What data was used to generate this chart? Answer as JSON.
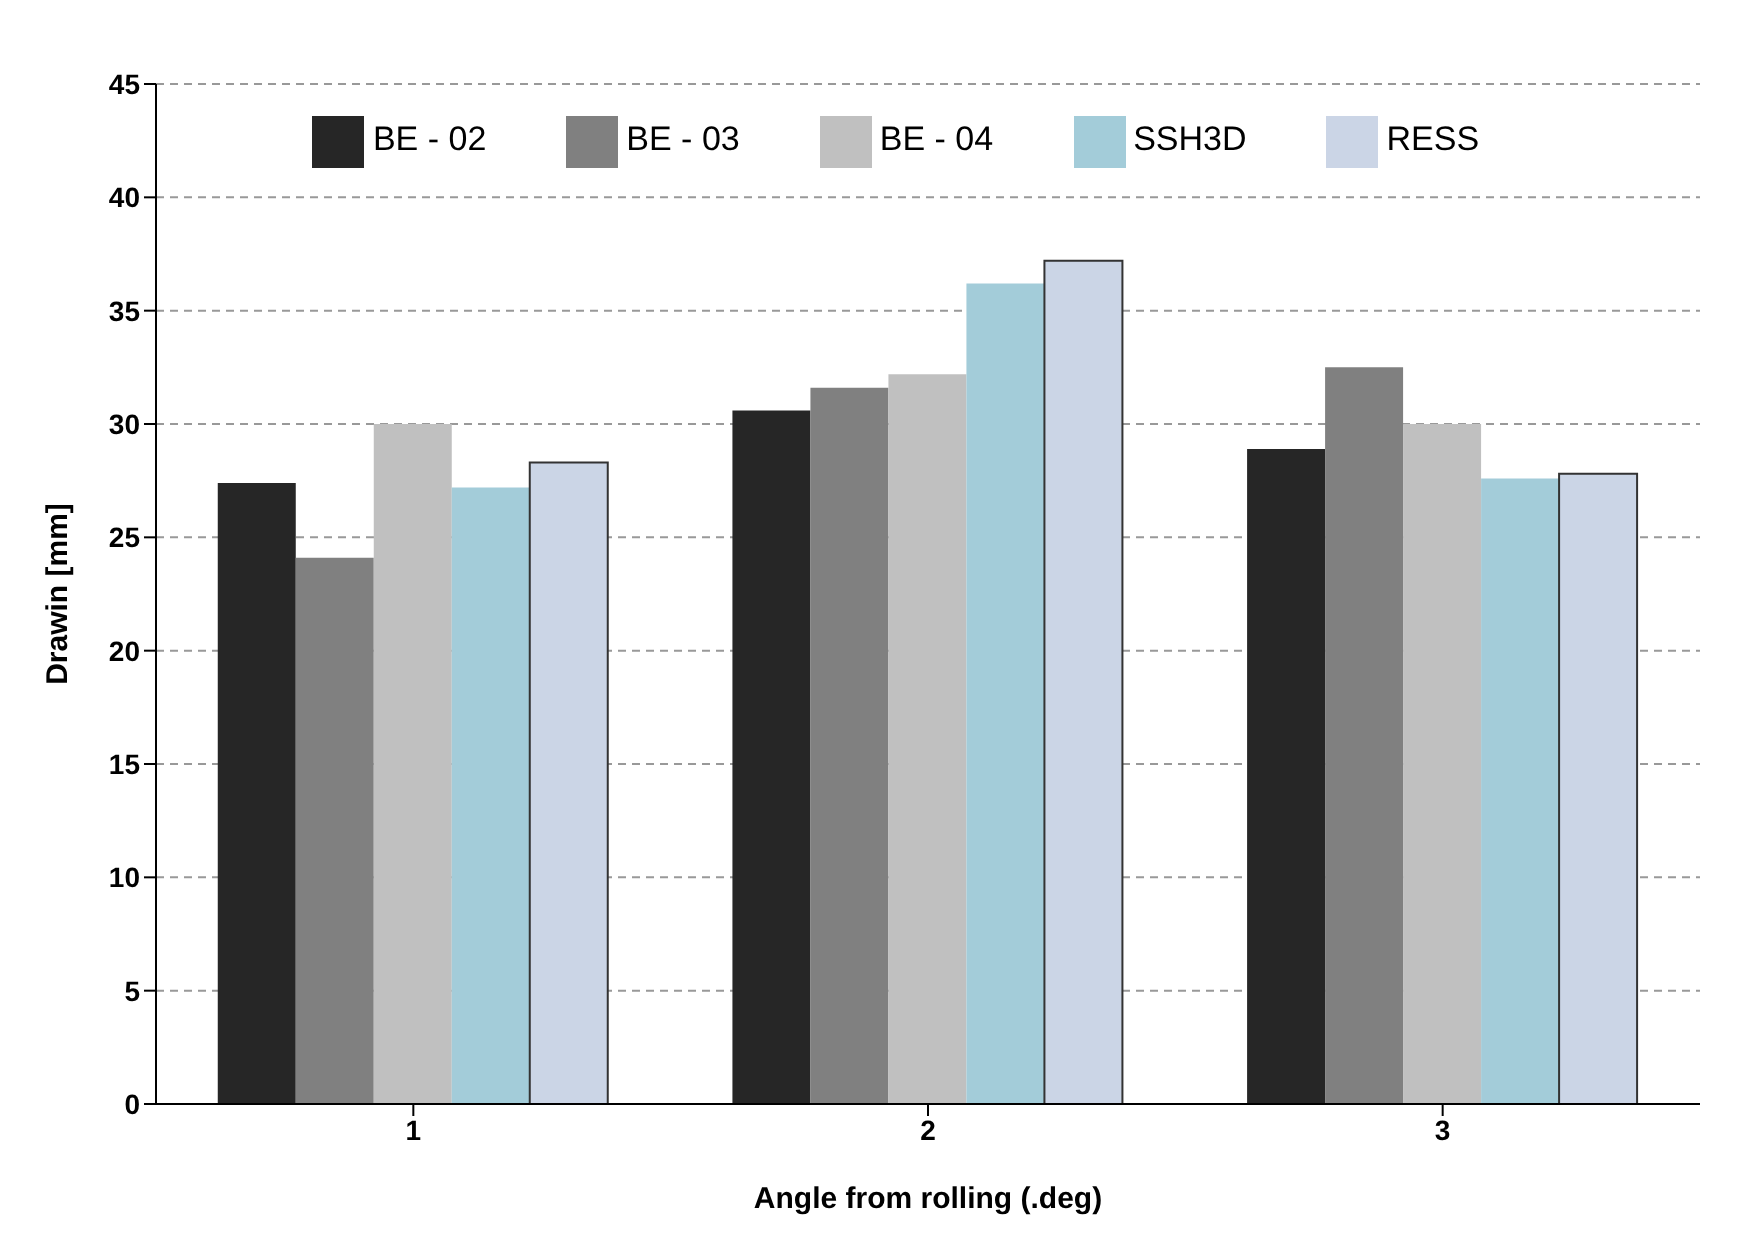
{
  "chart_data": {
    "type": "bar",
    "xlabel": "Angle from rolling (.deg)",
    "ylabel": "Drawin [mm]",
    "categories": [
      "1",
      "2",
      "3"
    ],
    "series": [
      {
        "name": "BE - 02",
        "color": "#262626",
        "values": [
          27.4,
          30.6,
          28.9
        ]
      },
      {
        "name": "BE - 03",
        "color": "#808080",
        "values": [
          24.1,
          31.6,
          32.5
        ]
      },
      {
        "name": "BE - 04",
        "color": "#c0c0c0",
        "values": [
          30.0,
          32.2,
          30.0
        ]
      },
      {
        "name": "SSH3D",
        "color": "#a3ccd9",
        "values": [
          27.2,
          36.2,
          27.6
        ]
      },
      {
        "name": "RESS",
        "color": "#cbd5e6",
        "values": [
          28.3,
          37.2,
          27.8
        ]
      }
    ],
    "ylim": [
      0,
      45
    ],
    "yticks": [
      0,
      5,
      10,
      15,
      20,
      25,
      30,
      35,
      40,
      45
    ],
    "grid": "y",
    "legend": "top"
  }
}
